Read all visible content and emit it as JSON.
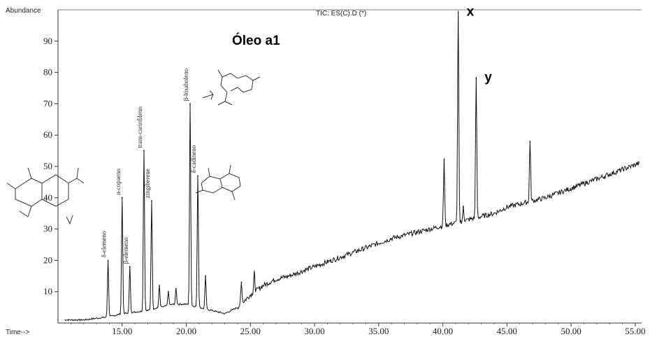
{
  "chart_data": {
    "type": "line",
    "title": "TIC: ES(C).D (*)",
    "subtitle": "Óleo a1",
    "ylabel": "Abundance",
    "xlabel": "Time-->",
    "xlim": [
      10.0,
      55.5
    ],
    "ylim": [
      0,
      100
    ],
    "x_ticks": [
      "15.00",
      "20.00",
      "25.00",
      "30.00",
      "35.00",
      "40.00",
      "45.00",
      "50.00",
      "55.00"
    ],
    "y_ticks": [
      "10",
      "20",
      "30",
      "40",
      "50",
      "60",
      "70",
      "80",
      "90"
    ],
    "baseline": {
      "x": [
        10.5,
        12,
        13,
        14,
        15,
        16,
        17,
        18,
        19,
        20,
        21,
        22,
        23,
        24,
        25,
        26,
        27,
        28,
        30,
        32,
        34,
        36,
        38,
        40,
        41,
        42,
        43,
        44,
        45,
        46,
        47,
        48,
        50,
        52,
        54,
        55.3
      ],
      "y": [
        1,
        1,
        1.5,
        2,
        3,
        3.5,
        4,
        5,
        6,
        6,
        5,
        4,
        3,
        5,
        9,
        12,
        14,
        15,
        18,
        21,
        24,
        27,
        29,
        31,
        32,
        33,
        34,
        35,
        37,
        38,
        39,
        40,
        43,
        46,
        49,
        51
      ]
    },
    "peaks": [
      {
        "x": 13.9,
        "y": 20,
        "label": "δ-elemeno"
      },
      {
        "x": 15.0,
        "y": 40,
        "label": "α-copaeno"
      },
      {
        "x": 15.6,
        "y": 18,
        "label": "β-elemeno"
      },
      {
        "x": 16.7,
        "y": 55,
        "label": "trans-cariofileno"
      },
      {
        "x": 17.3,
        "y": 39,
        "label": "zingiberene"
      },
      {
        "x": 17.9,
        "y": 12,
        "label": ""
      },
      {
        "x": 18.6,
        "y": 10,
        "label": ""
      },
      {
        "x": 19.2,
        "y": 11,
        "label": ""
      },
      {
        "x": 20.3,
        "y": 70,
        "label": "β-bisaboleno"
      },
      {
        "x": 20.9,
        "y": 47,
        "label": "δ-cadineno"
      },
      {
        "x": 21.5,
        "y": 15,
        "label": ""
      },
      {
        "x": 24.3,
        "y": 13,
        "label": ""
      },
      {
        "x": 25.3,
        "y": 16,
        "label": ""
      },
      {
        "x": 40.1,
        "y": 52,
        "label": ""
      },
      {
        "x": 41.2,
        "y": 99,
        "label": "x"
      },
      {
        "x": 41.6,
        "y": 37,
        "label": ""
      },
      {
        "x": 42.6,
        "y": 78,
        "label": "y"
      },
      {
        "x": 46.8,
        "y": 58,
        "label": ""
      }
    ],
    "grid": false,
    "legend": "none"
  }
}
